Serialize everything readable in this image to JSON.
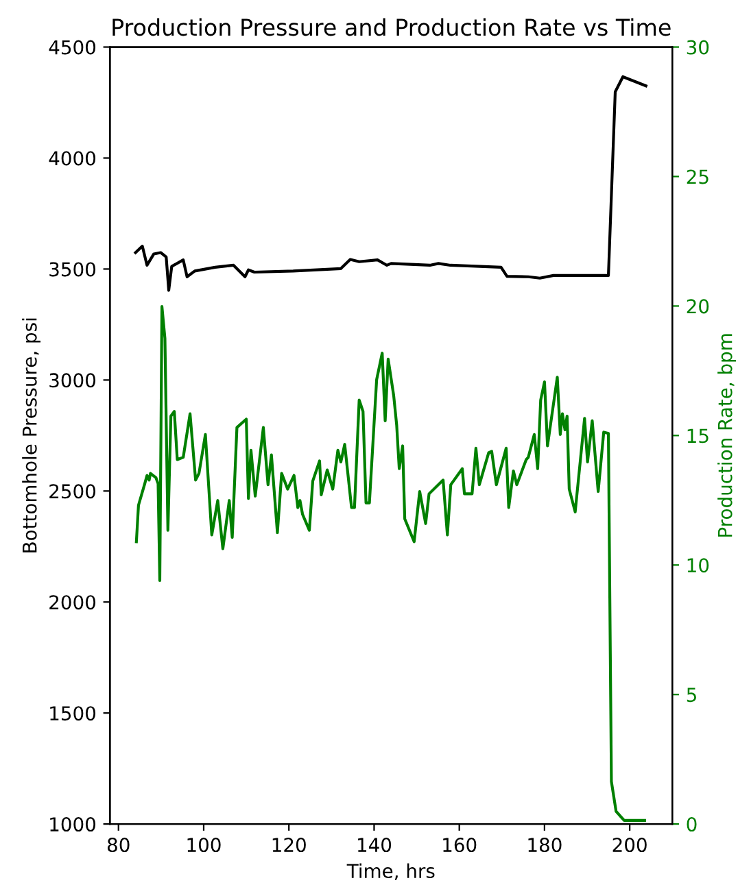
{
  "chart_data": {
    "type": "line",
    "title": "Production Pressure and Production Rate vs Time",
    "xlabel": "Time, hrs",
    "ylabel": "Bottomhole Pressure, psi",
    "y2label": "Production Rate, bpm",
    "xlim": [
      78,
      210
    ],
    "xticks": [
      80,
      100,
      120,
      140,
      160,
      180,
      200
    ],
    "ylim": [
      1000,
      4500
    ],
    "yticks": [
      1000,
      1500,
      2000,
      2500,
      3000,
      3500,
      4000,
      4500
    ],
    "y2lim": [
      0,
      30
    ],
    "y2ticks": [
      0,
      5,
      10,
      15,
      20,
      25,
      30
    ],
    "grid": false,
    "legend": false,
    "series": [
      {
        "color": "#000000",
        "axis": "y",
        "x": [
          84.0,
          85.6,
          86.7,
          88.3,
          89.9,
          91.2,
          91.8,
          92.5,
          95.2,
          96.1,
          97.9,
          102.7,
          107.0,
          109.7,
          110.5,
          111.9,
          121.0,
          132.2,
          134.4,
          136.5,
          140.8,
          143.0,
          144.0,
          153.1,
          155.1,
          157.9,
          169.8,
          171.2,
          176.2,
          178.9,
          182.1,
          195.0,
          196.6,
          198.4,
          203.8
        ],
        "values": [
          3574,
          3603,
          3517,
          3568,
          3574,
          3554,
          3404,
          3512,
          3541,
          3465,
          3491,
          3508,
          3517,
          3465,
          3496,
          3486,
          3491,
          3502,
          3543,
          3533,
          3541,
          3517,
          3525,
          3517,
          3525,
          3517,
          3508,
          3467,
          3465,
          3459,
          3471,
          3471,
          4298,
          4366,
          4325
        ]
      },
      {
        "color": "#008000",
        "axis": "y2",
        "x": [
          84.2,
          84.7,
          86.1,
          86.7,
          87.2,
          87.5,
          88.8,
          89.3,
          89.7,
          90.2,
          90.9,
          91.6,
          92.3,
          93.1,
          93.8,
          95.2,
          96.8,
          98.1,
          98.9,
          100.4,
          101.9,
          103.3,
          104.5,
          106.0,
          106.7,
          107.8,
          110.0,
          110.5,
          111.1,
          112.1,
          114.0,
          115.1,
          115.9,
          117.3,
          118.3,
          119.7,
          121.2,
          122.1,
          122.6,
          123.2,
          124.8,
          125.6,
          127.2,
          127.6,
          129.0,
          130.3,
          131.5,
          132.2,
          133.1,
          134.7,
          135.4,
          136.5,
          137.4,
          138.1,
          138.9,
          140.6,
          141.9,
          142.6,
          143.3,
          144.6,
          145.3,
          145.9,
          146.7,
          147.2,
          149.4,
          150.7,
          152.1,
          152.9,
          156.2,
          157.2,
          158.0,
          160.7,
          161.2,
          163.0,
          163.9,
          164.7,
          166.9,
          167.6,
          168.7,
          171.0,
          171.6,
          172.7,
          173.5,
          175.7,
          176.2,
          177.6,
          178.4,
          179.1,
          180.0,
          180.7,
          183.0,
          183.7,
          184.2,
          184.8,
          185.3,
          185.8,
          187.2,
          189.4,
          190.1,
          191.2,
          192.6,
          193.9,
          195.0,
          195.7,
          196.8,
          198.7,
          203.5
        ],
        "values": [
          10.9,
          12.31,
          13.1,
          13.46,
          13.28,
          13.54,
          13.37,
          13.14,
          9.4,
          19.98,
          18.75,
          11.34,
          15.75,
          15.93,
          14.07,
          14.16,
          15.84,
          13.28,
          13.54,
          15.04,
          11.16,
          12.49,
          10.63,
          12.49,
          11.07,
          15.31,
          15.63,
          12.57,
          14.43,
          12.66,
          15.31,
          13.1,
          14.25,
          11.25,
          13.54,
          12.93,
          13.46,
          12.22,
          12.49,
          11.96,
          11.34,
          13.24,
          14.02,
          12.71,
          13.67,
          12.93,
          14.43,
          13.98,
          14.66,
          12.22,
          12.22,
          16.37,
          15.93,
          12.4,
          12.4,
          17.16,
          18.18,
          15.57,
          17.95,
          16.54,
          15.4,
          13.72,
          14.6,
          11.78,
          10.9,
          12.84,
          11.6,
          12.75,
          13.28,
          11.16,
          13.1,
          13.72,
          12.75,
          12.75,
          14.51,
          13.1,
          14.34,
          14.39,
          13.1,
          14.51,
          12.22,
          13.63,
          13.1,
          14.07,
          14.16,
          15.04,
          13.72,
          16.37,
          17.07,
          14.6,
          17.25,
          15.04,
          15.84,
          15.22,
          15.75,
          12.93,
          12.05,
          15.66,
          13.98,
          15.57,
          12.84,
          15.13,
          15.08,
          1.64,
          0.49,
          0.14,
          0.14
        ]
      }
    ]
  }
}
